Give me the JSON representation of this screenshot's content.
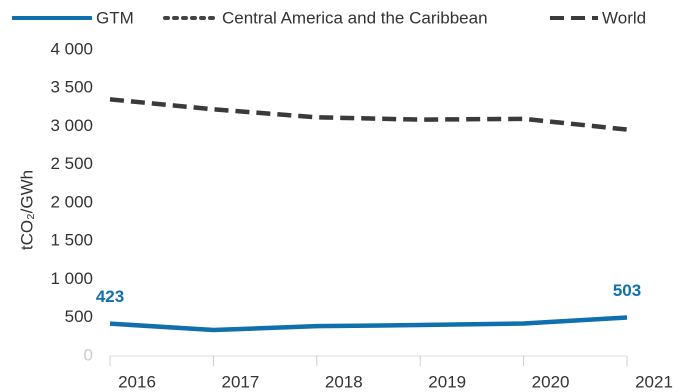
{
  "chart_data": {
    "type": "line",
    "y_label": "tCO₂/GWh",
    "categories": [
      "2016",
      "2017",
      "2018",
      "2019",
      "2020",
      "2021"
    ],
    "series": [
      {
        "name": "GTM",
        "color": "#0f70ad",
        "style": "solid",
        "values": [
          423,
          340,
          390,
          405,
          425,
          503
        ]
      },
      {
        "name": "Central America and the Caribbean",
        "color": "#444444",
        "style": "dotted",
        "values": [
          null,
          null,
          null,
          null,
          null,
          null
        ]
      },
      {
        "name": "World",
        "color": "#3a3a3a",
        "style": "dashed",
        "values": [
          3355,
          3225,
          3120,
          3090,
          3100,
          2960
        ]
      }
    ],
    "ylim": [
      0,
      4000
    ],
    "yticks": [
      {
        "value": 0,
        "label": "0"
      },
      500,
      {
        "value": 1000,
        "label": "1 000"
      },
      {
        "value": 1500,
        "label": "1 500"
      },
      {
        "value": 2000,
        "label": "2 000"
      },
      {
        "value": 2500,
        "label": "2 500"
      },
      {
        "value": 3000,
        "label": "3 000"
      },
      {
        "value": 3500,
        "label": "3 500"
      },
      {
        "value": 4000,
        "label": "4 000"
      }
    ],
    "legend": "top"
  }
}
